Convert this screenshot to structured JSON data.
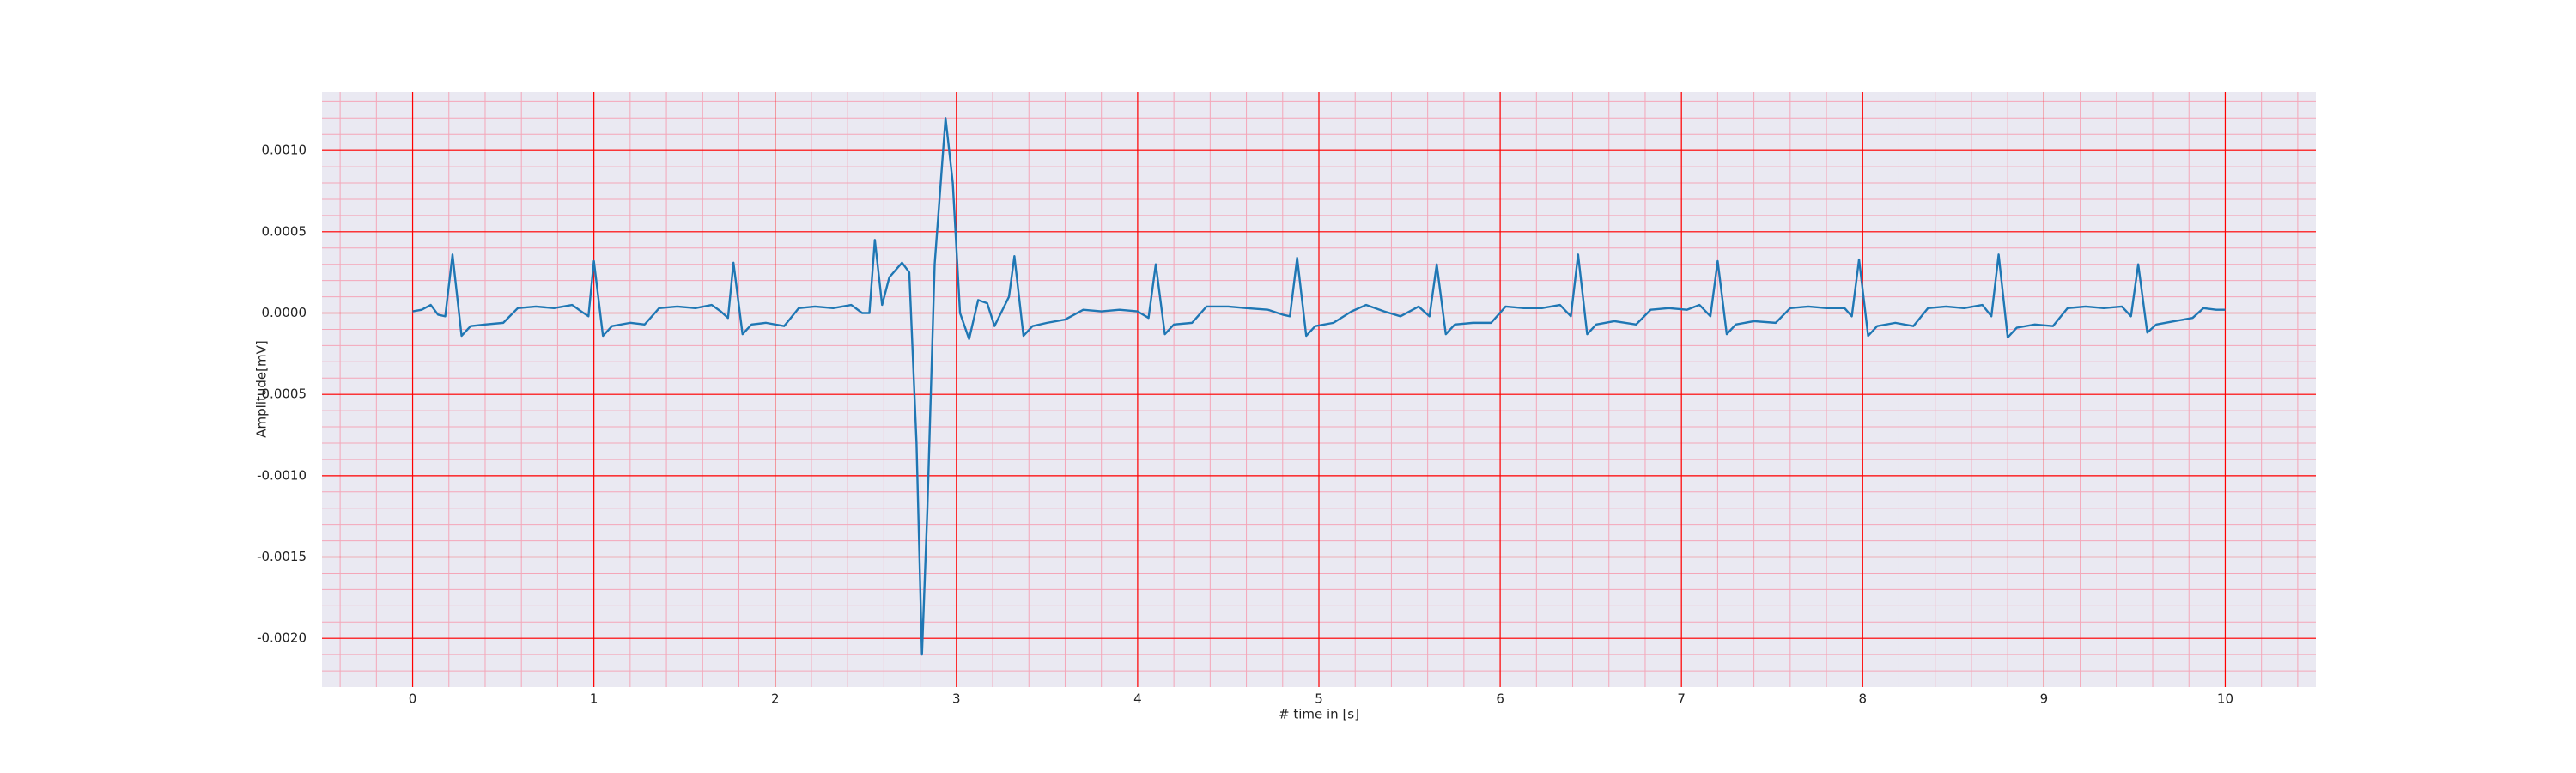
{
  "chart_data": {
    "type": "line",
    "xlabel": "# time in [s]",
    "ylabel": "Amplitude[mV]",
    "x": [
      0,
      0.05,
      0.1,
      0.14,
      0.18,
      0.22,
      0.27,
      0.32,
      0.4,
      0.5,
      0.58,
      0.68,
      0.78,
      0.88,
      0.93,
      0.97,
      1.0,
      1.05,
      1.1,
      1.2,
      1.28,
      1.36,
      1.46,
      1.56,
      1.65,
      1.7,
      1.74,
      1.77,
      1.82,
      1.87,
      1.95,
      2.05,
      2.13,
      2.22,
      2.32,
      2.42,
      2.48,
      2.52,
      2.55,
      2.59,
      2.63,
      2.7,
      2.74,
      2.78,
      2.81,
      2.84,
      2.88,
      2.94,
      2.98,
      3.02,
      3.07,
      3.12,
      3.17,
      3.21,
      3.25,
      3.29,
      3.32,
      3.37,
      3.42,
      3.5,
      3.6,
      3.7,
      3.8,
      3.9,
      4.0,
      4.06,
      4.1,
      4.15,
      4.2,
      4.3,
      4.38,
      4.5,
      4.6,
      4.72,
      4.8,
      4.84,
      4.88,
      4.93,
      4.98,
      5.08,
      5.18,
      5.26,
      5.36,
      5.45,
      5.55,
      5.61,
      5.65,
      5.7,
      5.75,
      5.85,
      5.95,
      6.03,
      6.13,
      6.23,
      6.33,
      6.39,
      6.43,
      6.48,
      6.53,
      6.63,
      6.75,
      6.83,
      6.93,
      7.03,
      7.1,
      7.16,
      7.2,
      7.25,
      7.3,
      7.4,
      7.52,
      7.6,
      7.7,
      7.8,
      7.9,
      7.94,
      7.98,
      8.03,
      8.08,
      8.18,
      8.28,
      8.36,
      8.46,
      8.56,
      8.66,
      8.71,
      8.75,
      8.8,
      8.85,
      8.95,
      9.05,
      9.13,
      9.23,
      9.33,
      9.43,
      9.48,
      9.52,
      9.57,
      9.62,
      9.72,
      9.82,
      9.88,
      9.95,
      10.0
    ],
    "series": [
      {
        "color": "#1f77b4",
        "values": [
          1e-05,
          2e-05,
          5e-05,
          -1e-05,
          -2e-05,
          0.00036,
          -0.00014,
          -8e-05,
          -7e-05,
          -6e-05,
          3e-05,
          4e-05,
          3e-05,
          5e-05,
          1e-05,
          -2e-05,
          0.00032,
          -0.00014,
          -8e-05,
          -6e-05,
          -7e-05,
          3e-05,
          4e-05,
          3e-05,
          5e-05,
          1e-05,
          -3e-05,
          0.00031,
          -0.00013,
          -7e-05,
          -6e-05,
          -8e-05,
          3e-05,
          4e-05,
          3e-05,
          5e-05,
          0.0,
          0.0,
          0.00045,
          5e-05,
          0.00022,
          0.00031,
          0.00025,
          -0.0008,
          -0.0021,
          -0.0012,
          0.0003,
          0.0012,
          0.0008,
          0.0,
          -0.00016,
          8e-05,
          6e-05,
          -8e-05,
          1e-05,
          0.0001,
          0.00035,
          -0.00014,
          -8e-05,
          -6e-05,
          -4e-05,
          2e-05,
          1e-05,
          2e-05,
          1e-05,
          -3e-05,
          0.0003,
          -0.00013,
          -7e-05,
          -6e-05,
          4e-05,
          4e-05,
          3e-05,
          2e-05,
          -1e-05,
          -2e-05,
          0.00034,
          -0.00014,
          -8e-05,
          -6e-05,
          1e-05,
          5e-05,
          1e-05,
          -2e-05,
          4e-05,
          -2e-05,
          0.0003,
          -0.00013,
          -7e-05,
          -6e-05,
          -6e-05,
          4e-05,
          3e-05,
          3e-05,
          5e-05,
          -2e-05,
          0.00036,
          -0.00013,
          -7e-05,
          -5e-05,
          -7e-05,
          2e-05,
          3e-05,
          2e-05,
          5e-05,
          -2e-05,
          0.00032,
          -0.00013,
          -7e-05,
          -5e-05,
          -6e-05,
          3e-05,
          4e-05,
          3e-05,
          3e-05,
          -2e-05,
          0.00033,
          -0.00014,
          -8e-05,
          -6e-05,
          -8e-05,
          3e-05,
          4e-05,
          3e-05,
          5e-05,
          -2e-05,
          0.00036,
          -0.00015,
          -9e-05,
          -7e-05,
          -8e-05,
          3e-05,
          4e-05,
          3e-05,
          4e-05,
          -2e-05,
          0.0003,
          -0.00012,
          -7e-05,
          -5e-05,
          -3e-05,
          3e-05,
          2e-05,
          2e-05
        ]
      }
    ],
    "xlim": [
      -0.5,
      10.5
    ],
    "xticks": [
      0,
      1,
      2,
      3,
      4,
      5,
      6,
      7,
      8,
      9,
      10
    ],
    "ylim": [
      -0.0023,
      0.00136
    ],
    "yticks": [
      {
        "value": -0.002,
        "label": "-0.0020"
      },
      {
        "value": -0.0015,
        "label": "-0.0015"
      },
      {
        "value": -0.001,
        "label": "-0.0010"
      },
      {
        "value": -0.0005,
        "label": "-0.0005"
      },
      {
        "value": 0,
        "label": "0.0000"
      },
      {
        "value": 0.0005,
        "label": "0.0005"
      },
      {
        "value": 0.001,
        "label": "0.0010"
      }
    ],
    "grid": true,
    "grid_color": "#ff0000",
    "minor_grid": true,
    "minor_grid_color": "#f4a6b8",
    "minor_divisions": 5,
    "background": "#eae9f2"
  }
}
